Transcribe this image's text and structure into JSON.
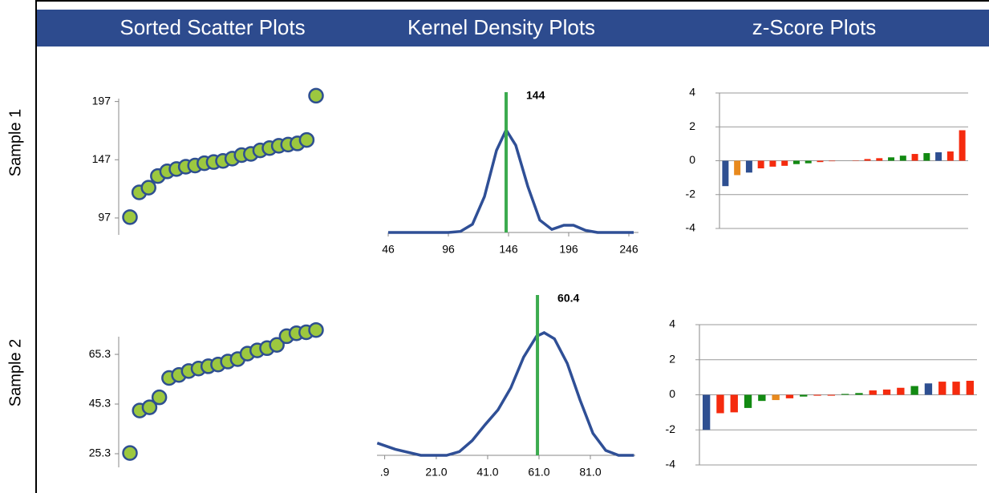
{
  "columns": [
    "Sorted Scatter Plots",
    "Kernel Density Plots",
    "z-Score Plots"
  ],
  "rows": [
    "Sample 1",
    "Sample 2"
  ],
  "chart_data": [
    {
      "type": "scatter",
      "values": [
        97.7,
        119,
        123,
        133,
        137,
        139,
        141,
        142,
        144,
        145,
        146,
        148,
        151,
        152,
        155,
        157,
        159,
        160,
        161,
        164,
        202
      ],
      "color": "#9cc83f",
      "edgecolor": "#2e4f91",
      "ylim": [
        88,
        205
      ],
      "yticks": [
        97,
        147,
        197
      ]
    },
    {
      "type": "scatter",
      "values": [
        25.6,
        42.7,
        44,
        48,
        55.8,
        57,
        58.6,
        59.6,
        60.5,
        61.2,
        62.4,
        63.4,
        65.6,
        66.9,
        67.8,
        69.1,
        72.6,
        73.8,
        74.2,
        75.1
      ],
      "color": "#9cc83f",
      "edgecolor": "#2e4f91",
      "ylim": [
        22.4,
        75
      ],
      "yticks": [
        {
          "value": 25.3,
          "label": "25.3"
        },
        {
          "value": 45.3,
          "label": "45.3"
        },
        {
          "value": 65.3,
          "label": "65.3"
        }
      ]
    },
    {
      "type": "line",
      "x": [
        46,
        96,
        106,
        116,
        126,
        136,
        144,
        152,
        162,
        172,
        182,
        192,
        200,
        210,
        220,
        250
      ],
      "values": [
        0,
        0,
        0.01,
        0.08,
        0.35,
        0.8,
        1.0,
        0.85,
        0.45,
        0.12,
        0.03,
        0.07,
        0.07,
        0.02,
        0,
        0
      ],
      "color": "#2f4f96",
      "xlim": [
        46,
        254
      ],
      "ylim": [
        0,
        1
      ],
      "xticks": [
        46,
        96,
        146,
        196,
        246
      ],
      "vline": 144,
      "vline_color": "#3cab4f"
    },
    {
      "type": "line",
      "x": [
        -2,
        5,
        15,
        25,
        30,
        35,
        40,
        45,
        50,
        55,
        60,
        63,
        67,
        72,
        77,
        82,
        87,
        92,
        98
      ],
      "values": [
        0.1,
        0.05,
        0,
        0,
        0.03,
        0.12,
        0.25,
        0.37,
        0.55,
        0.8,
        0.97,
        1.0,
        0.95,
        0.75,
        0.45,
        0.18,
        0.04,
        0,
        0
      ],
      "color": "#2f4f96",
      "xlim": [
        -2.1,
        98.5
      ],
      "ylim": [
        0,
        1
      ],
      "xticks": [
        {
          "value": 0.9,
          "label": ".9"
        },
        {
          "value": 21,
          "label": "21.0"
        },
        {
          "value": 41,
          "label": "41.0"
        },
        {
          "value": 61,
          "label": "61.0"
        },
        {
          "value": 81,
          "label": "81.0"
        }
      ],
      "vline": 60.4,
      "vline_color": "#3cab4f"
    },
    {
      "type": "bar",
      "values": [
        -1.5,
        -0.85,
        -0.7,
        -0.45,
        -0.35,
        -0.3,
        -0.2,
        -0.15,
        -0.08,
        -0.03,
        0,
        0.02,
        0.1,
        0.15,
        0.2,
        0.3,
        0.4,
        0.45,
        0.5,
        0.55,
        1.8
      ],
      "colors": [
        "#2e4f91",
        "#e8891d",
        "#2e4f91",
        "#f52b0e",
        "#f52b0e",
        "#f52b0e",
        "#128a12",
        "#128a12",
        "#f52b0e",
        "#f52b0e",
        "#128a12",
        "#f52b0e",
        "#f52b0e",
        "#f52b0e",
        "#128a12",
        "#128a12",
        "#f52b0e",
        "#128a12",
        "#2e4f91",
        "#f52b0e",
        "#f52b0e"
      ],
      "ylim": [
        -4,
        4
      ],
      "yticks": [
        4,
        2,
        0,
        -2,
        -4
      ],
      "grid": true
    },
    {
      "type": "bar",
      "values": [
        -2.0,
        -1.05,
        -1.0,
        -0.75,
        -0.35,
        -0.3,
        -0.2,
        -0.1,
        -0.05,
        -0.05,
        0.05,
        0.1,
        0.25,
        0.3,
        0.4,
        0.5,
        0.65,
        0.75,
        0.75,
        0.8
      ],
      "colors": [
        "#2e4f91",
        "#f52b0e",
        "#f52b0e",
        "#128a12",
        "#128a12",
        "#e8891d",
        "#f52b0e",
        "#128a12",
        "#f52b0e",
        "#f52b0e",
        "#128a12",
        "#128a12",
        "#f52b0e",
        "#f52b0e",
        "#f52b0e",
        "#128a12",
        "#2e4f91",
        "#f52b0e",
        "#f52b0e",
        "#f52b0e"
      ],
      "ylim": [
        -4,
        4
      ],
      "yticks": [
        4,
        2,
        0,
        -2,
        -4
      ],
      "grid": true
    }
  ]
}
